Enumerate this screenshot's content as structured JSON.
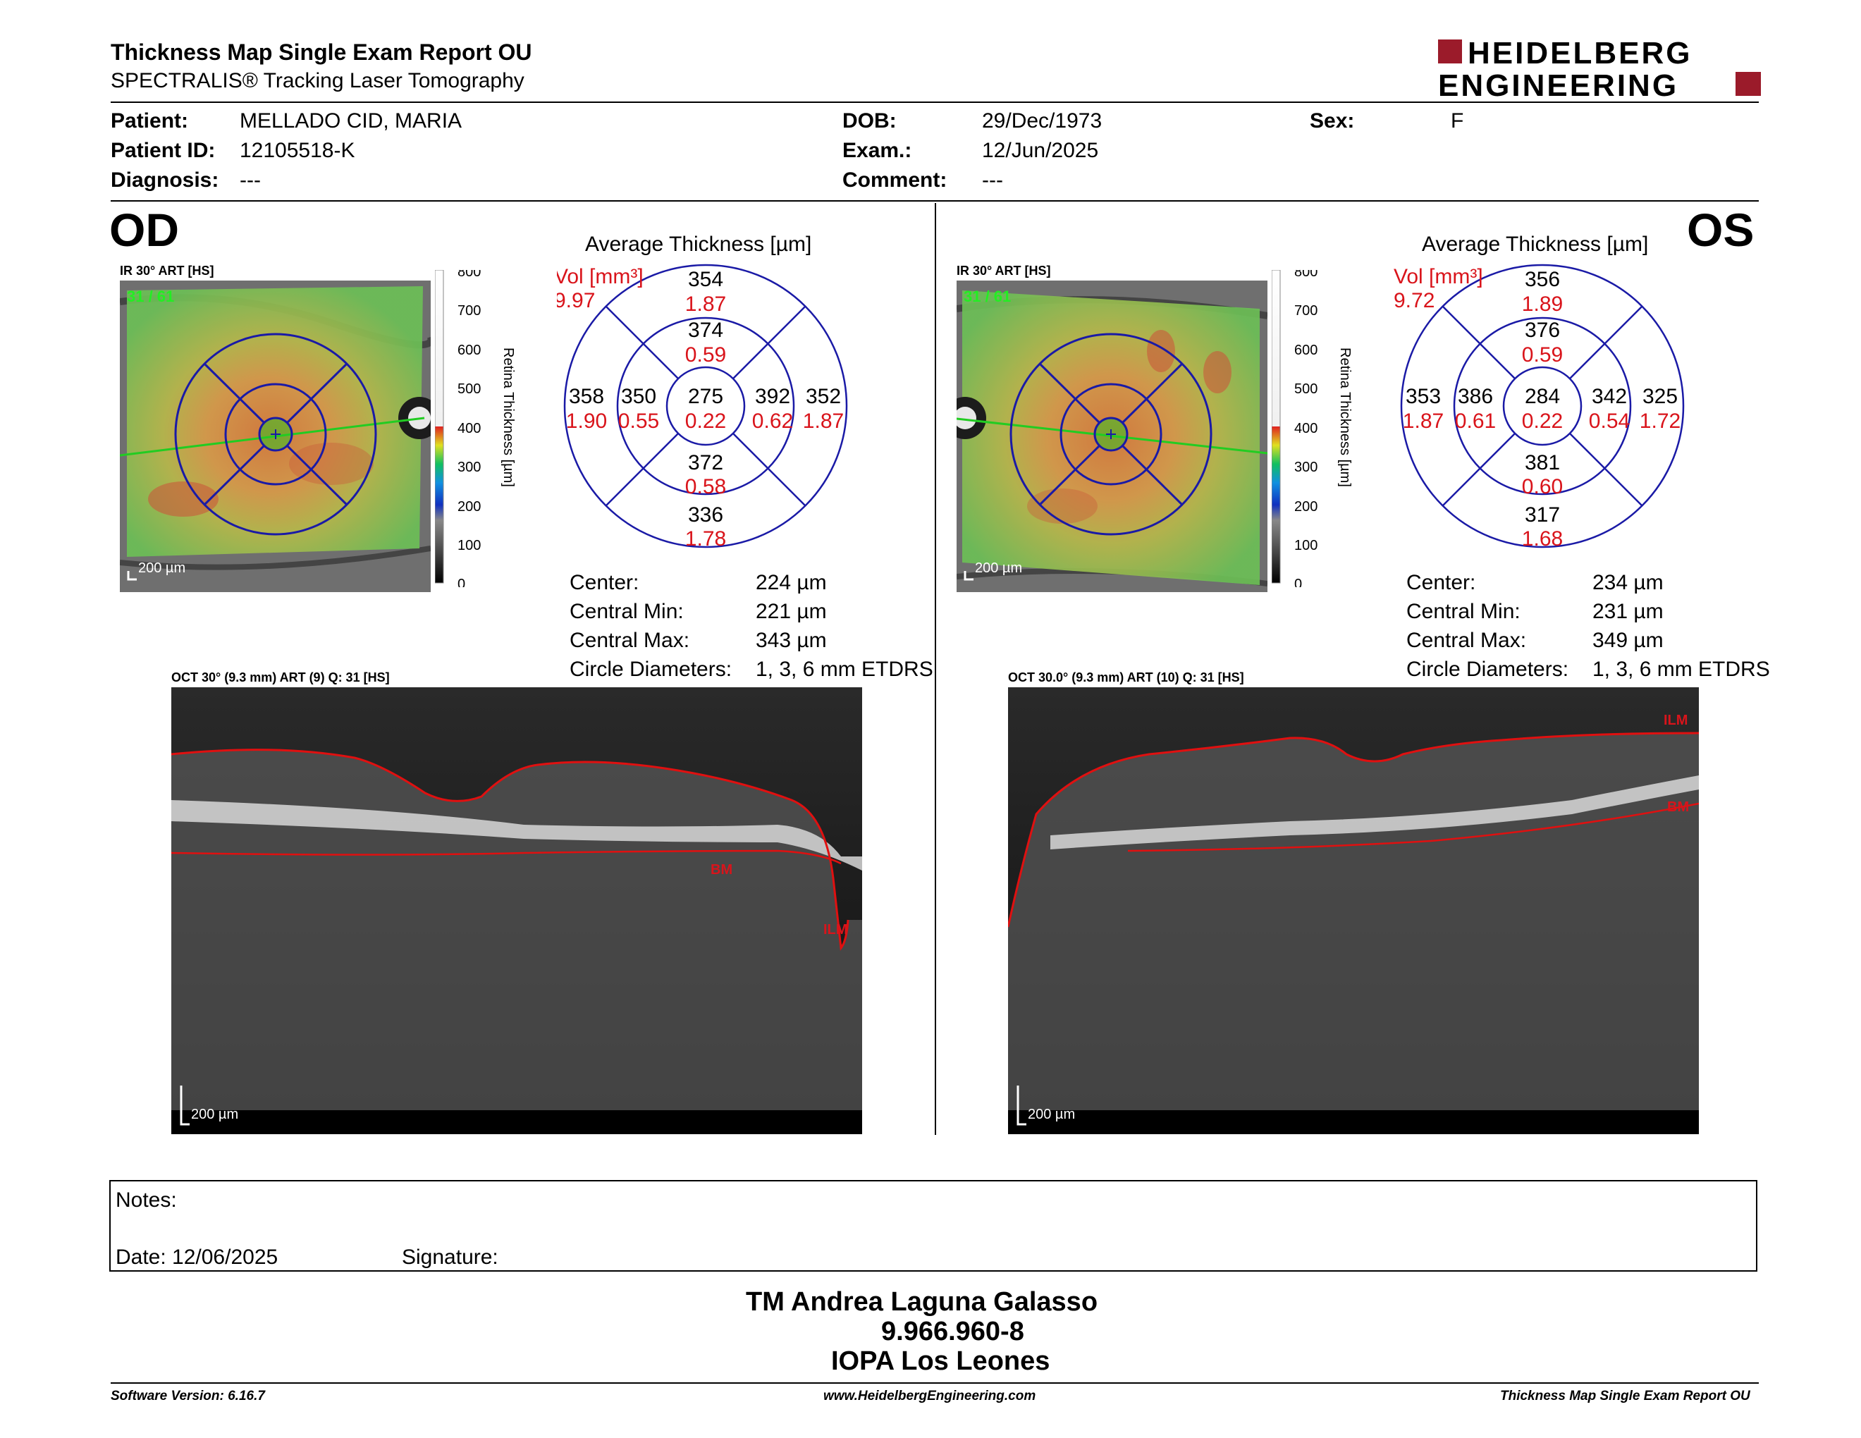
{
  "header": {
    "title": "Thickness Map Single Exam Report OU",
    "subtitle": "SPECTRALIS® Tracking Laser Tomography",
    "logo_line1": "HEIDELBERG",
    "logo_line2": "ENGINEERING"
  },
  "patient": {
    "patient_label": "Patient:",
    "patient_value": "MELLADO CID, MARIA",
    "id_label": "Patient ID:",
    "id_value": "12105518-K",
    "diagnosis_label": "Diagnosis:",
    "diagnosis_value": "---",
    "dob_label": "DOB:",
    "dob_value": "29/Dec/1973",
    "exam_label": "Exam.:",
    "exam_value": "12/Jun/2025",
    "comment_label": "Comment:",
    "comment_value": "---",
    "sex_label": "Sex:",
    "sex_value": "F"
  },
  "od": {
    "eye_label": "OD",
    "ir_label": "IR 30° ART [HS]",
    "frame_count": "31 / 61",
    "scale_label": "200 µm",
    "colorbar_ticks": [
      "800",
      "700",
      "600",
      "500",
      "400",
      "300",
      "200",
      "100",
      "0"
    ],
    "colorbar_title": "Retina  Thickness [µm]",
    "avg_title": "Average Thickness [µm]",
    "vol_label": "Vol [mm³]",
    "vol_value": "9.97",
    "sectors": {
      "center_t": "275",
      "center_v": "0.22",
      "inner_sup_t": "374",
      "inner_sup_v": "0.59",
      "inner_inf_t": "372",
      "inner_inf_v": "0.58",
      "inner_left_t": "350",
      "inner_left_v": "0.55",
      "inner_right_t": "392",
      "inner_right_v": "0.62",
      "outer_sup_t": "354",
      "outer_sup_v": "1.87",
      "outer_inf_t": "336",
      "outer_inf_v": "1.78",
      "outer_left_t": "358",
      "outer_left_v": "1.90",
      "outer_right_t": "352",
      "outer_right_v": "1.87"
    },
    "stats": {
      "center_label": "Center:",
      "center_value": "224 µm",
      "cmin_label": "Central Min:",
      "cmin_value": "221 µm",
      "cmax_label": "Central Max:",
      "cmax_value": "343 µm",
      "diam_label": "Circle Diameters:",
      "diam_value": "1, 3, 6 mm ETDRS"
    },
    "oct_label": "OCT 30° (9.3 mm) ART (9) Q: 31 [HS]",
    "oct_scale": "200 µm",
    "ilm": "ILM",
    "bm": "BM"
  },
  "os": {
    "eye_label": "OS",
    "ir_label": "IR 30° ART [HS]",
    "frame_count": "31 / 61",
    "scale_label": "200 µm",
    "colorbar_ticks": [
      "800",
      "700",
      "600",
      "500",
      "400",
      "300",
      "200",
      "100",
      "0"
    ],
    "colorbar_title": "Retina  Thickness [µm]",
    "avg_title": "Average Thickness [µm]",
    "vol_label": "Vol [mm³]",
    "vol_value": "9.72",
    "sectors": {
      "center_t": "284",
      "center_v": "0.22",
      "inner_sup_t": "376",
      "inner_sup_v": "0.59",
      "inner_inf_t": "381",
      "inner_inf_v": "0.60",
      "inner_left_t": "386",
      "inner_left_v": "0.61",
      "inner_right_t": "342",
      "inner_right_v": "0.54",
      "outer_sup_t": "356",
      "outer_sup_v": "1.89",
      "outer_inf_t": "317",
      "outer_inf_v": "1.68",
      "outer_left_t": "353",
      "outer_left_v": "1.87",
      "outer_right_t": "325",
      "outer_right_v": "1.72"
    },
    "stats": {
      "center_label": "Center:",
      "center_value": "234 µm",
      "cmin_label": "Central Min:",
      "cmin_value": "231 µm",
      "cmax_label": "Central Max:",
      "cmax_value": "349 µm",
      "diam_label": "Circle Diameters:",
      "diam_value": "1, 3, 6 mm ETDRS"
    },
    "oct_label": "OCT 30.0° (9.3 mm) ART (10) Q: 31 [HS]",
    "oct_scale": "200 µm",
    "ilm": "ILM",
    "bm": "BM"
  },
  "notes": {
    "notes_label": "Notes:",
    "date_label": "Date: 12/06/2025",
    "signature_label": "Signature:"
  },
  "signature_block": {
    "name": "TM Andrea Laguna Galasso",
    "id": "9.966.960-8",
    "org": "IOPA Los Leones"
  },
  "footer": {
    "software": "Software Version: 6.16.7",
    "url": "www.HeidelbergEngineering.com",
    "report": "Thickness Map Single Exam Report OU"
  },
  "colors": {
    "logo_red": "#9b1b2a",
    "circle_blue": "#1a1aa6",
    "volume_red": "#d9141b",
    "layer_red": "#d9141b",
    "scan_green": "#22cc22"
  }
}
